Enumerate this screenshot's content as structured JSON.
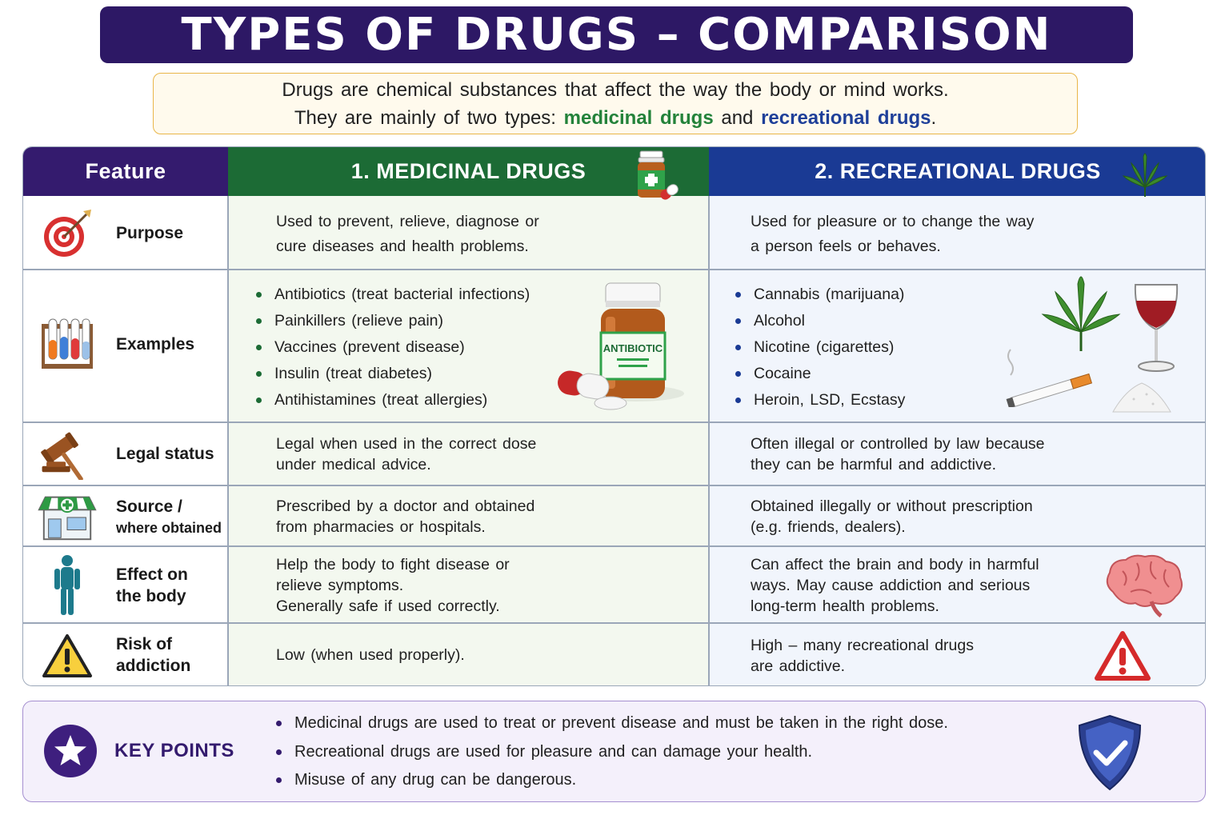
{
  "title": "TYPES OF DRUGS – COMPARISON",
  "intro": {
    "line1": "Drugs are chemical substances that affect the way the body or mind works.",
    "line2_before": "They are mainly of two types: ",
    "line2_medicinal": "medicinal drugs",
    "line2_and": " and ",
    "line2_recreational": "recreational drugs",
    "line2_end": "."
  },
  "headers": {
    "feature": "Feature",
    "medicinal": "1. MEDICINAL DRUGS",
    "recreational": "2. RECREATIONAL DRUGS"
  },
  "rows": {
    "purpose": {
      "label": "Purpose",
      "icon": "target-icon",
      "medicinal": [
        "Used to prevent, relieve, diagnose or",
        "cure diseases and health problems."
      ],
      "recreational": [
        "Used for pleasure or to change the way",
        "a person feels or behaves."
      ]
    },
    "examples": {
      "label": "Examples",
      "icon": "test-tubes-icon",
      "medicinal": [
        "Antibiotics (treat bacterial infections)",
        "Painkillers (relieve pain)",
        "Vaccines (prevent disease)",
        "Insulin (treat diabetes)",
        "Antihistamines (treat allergies)"
      ],
      "medicinal_bottle_label": "ANTIBIOTIC",
      "recreational": [
        "Cannabis (marijuana)",
        "Alcohol",
        "Nicotine (cigarettes)",
        "Cocaine",
        "Heroin, LSD, Ecstasy"
      ]
    },
    "legal": {
      "label": "Legal status",
      "icon": "gavel-icon",
      "medicinal": [
        "Legal when used in the correct dose",
        "under medical advice."
      ],
      "recreational": [
        "Often illegal or controlled by law because",
        "they can be harmful and addictive."
      ]
    },
    "source": {
      "label_line1": "Source /",
      "label_line2": "where obtained",
      "icon": "pharmacy-icon",
      "medicinal": [
        "Prescribed by a doctor and obtained",
        "from pharmacies or hospitals."
      ],
      "recreational": [
        "Obtained illegally or without prescription",
        "(e.g. friends, dealers)."
      ]
    },
    "effect": {
      "label_line1": "Effect on",
      "label_line2": "the body",
      "icon": "human-body-icon",
      "medicinal": [
        "Help the body to fight disease or",
        "relieve symptoms.",
        "Generally safe if used correctly."
      ],
      "recreational": [
        "Can affect the brain and body in harmful",
        "ways. May cause addiction and serious",
        "long-term health problems."
      ]
    },
    "risk": {
      "label_line1": "Risk of",
      "label_line2": "addiction",
      "icon": "warning-icon",
      "medicinal": [
        "Low (when used properly)."
      ],
      "recreational": [
        "High – many recreational drugs",
        "are addictive."
      ]
    }
  },
  "key_points": {
    "title": "KEY POINTS",
    "items": [
      "Medicinal drugs are used to treat or prevent disease and must be taken in the right dose.",
      "Recreational drugs are used for pleasure and can damage your health.",
      "Misuse of any drug can be dangerous."
    ]
  },
  "colors": {
    "title_bg": "#2d1865",
    "medicinal": "#1c6b35",
    "recreational": "#1a3a94",
    "intro_border": "#e9b649"
  }
}
